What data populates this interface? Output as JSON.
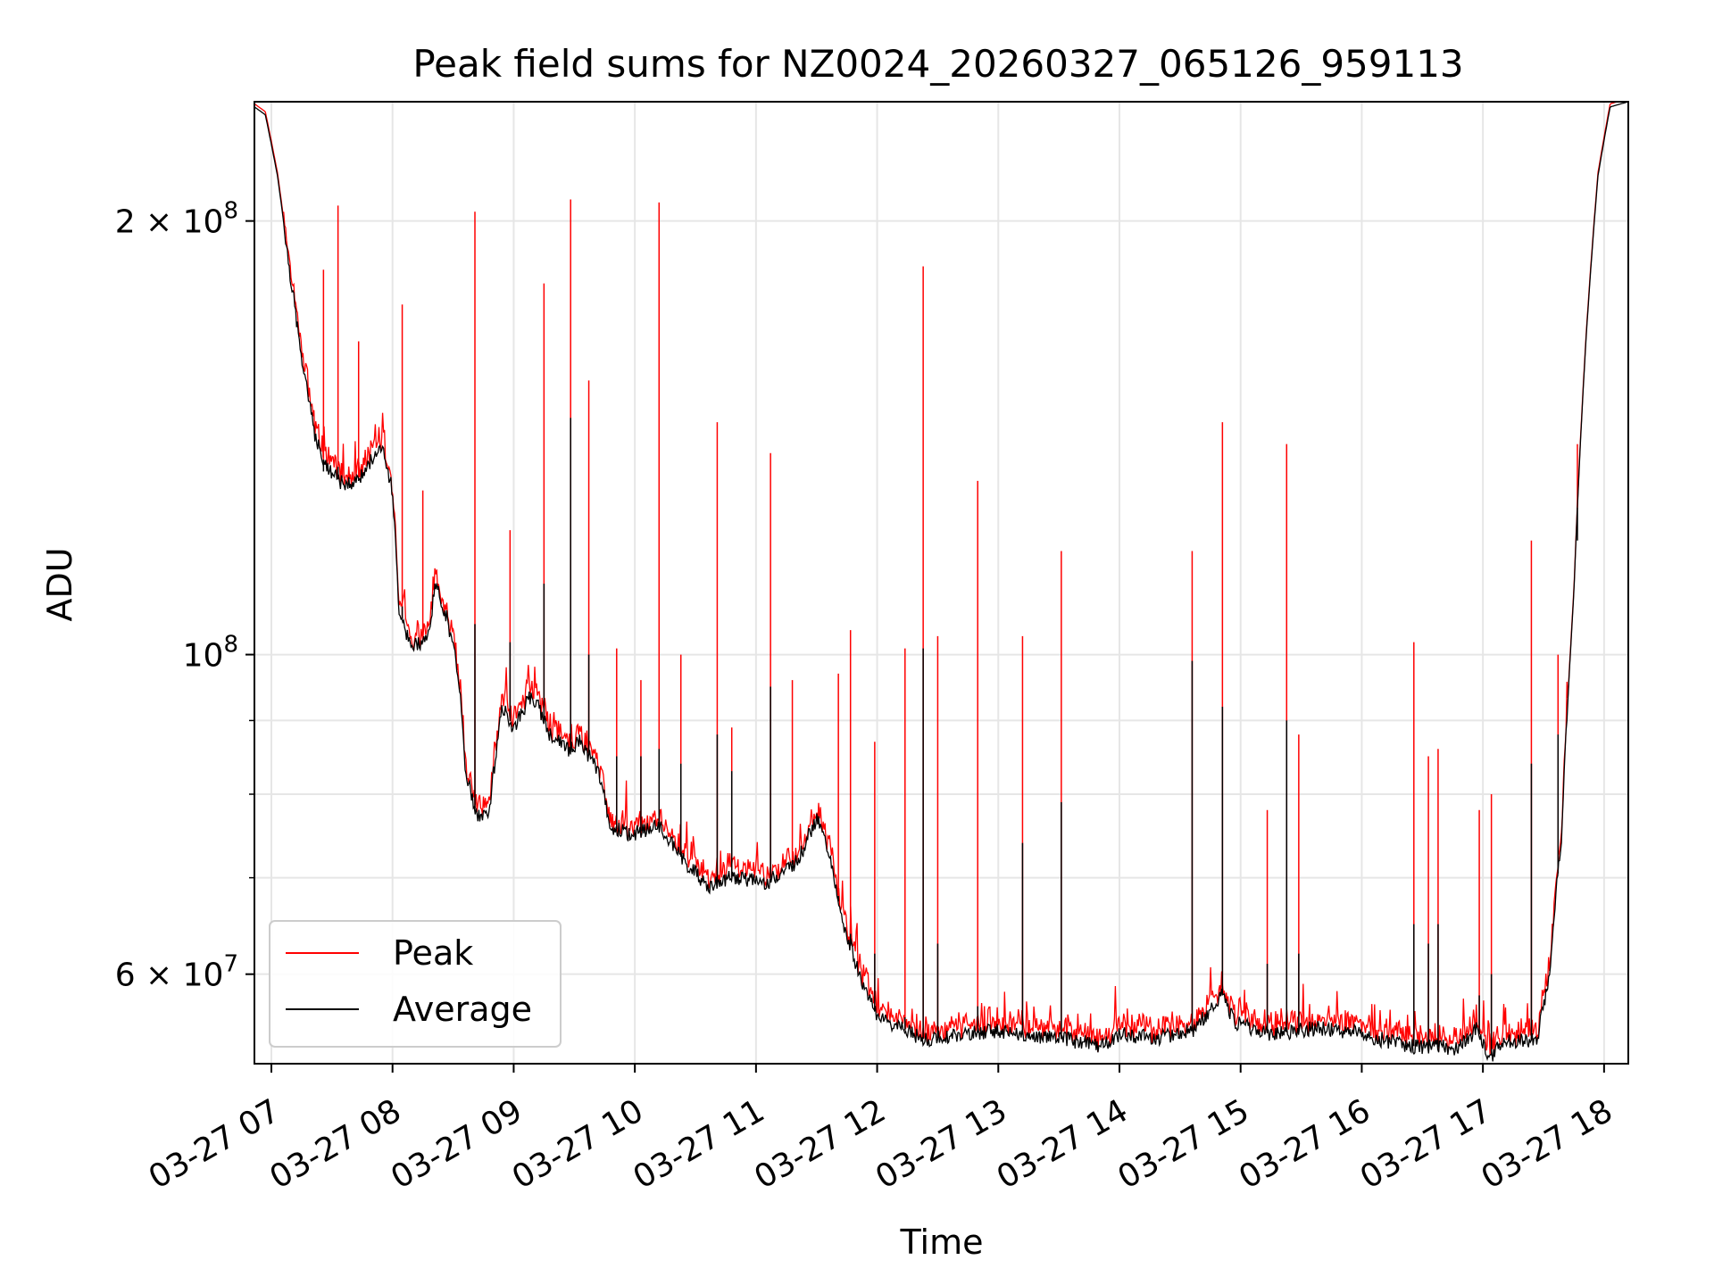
{
  "chart_data": {
    "type": "line",
    "title": "Peak field sums for NZ0024_20260327_065126_959113",
    "xlabel": "Time",
    "ylabel": "ADU",
    "yscale": "log",
    "ylim": [
      52000000,
      242000000
    ],
    "xlim_hours": [
      6.86,
      18.2
    ],
    "grid": true,
    "legend_position": "lower-left",
    "x_ticks": [
      {
        "hour": 7,
        "label": "03-27 07"
      },
      {
        "hour": 8,
        "label": "03-27 08"
      },
      {
        "hour": 9,
        "label": "03-27 09"
      },
      {
        "hour": 10,
        "label": "03-27 10"
      },
      {
        "hour": 11,
        "label": "03-27 11"
      },
      {
        "hour": 12,
        "label": "03-27 12"
      },
      {
        "hour": 13,
        "label": "03-27 13"
      },
      {
        "hour": 14,
        "label": "03-27 14"
      },
      {
        "hour": 15,
        "label": "03-27 15"
      },
      {
        "hour": 16,
        "label": "03-27 16"
      },
      {
        "hour": 17,
        "label": "03-27 17"
      },
      {
        "hour": 18,
        "label": "03-27 18"
      }
    ],
    "y_major_ticks": [
      {
        "value": 60000000,
        "mantissa": "6",
        "exponent": "7"
      },
      {
        "value": 100000000,
        "mantissa": "",
        "exponent": "8"
      },
      {
        "value": 200000000,
        "mantissa": "2",
        "exponent": "8"
      }
    ],
    "y_minor_ticks": [
      70000000,
      80000000,
      90000000
    ],
    "series": [
      {
        "name": "Peak",
        "color": "#ff0000"
      },
      {
        "name": "Average",
        "color": "#000000"
      }
    ],
    "average_baseline": [
      [
        6.86,
        240000000
      ],
      [
        6.95,
        237000000
      ],
      [
        7.05,
        215000000
      ],
      [
        7.15,
        185000000
      ],
      [
        7.25,
        160000000
      ],
      [
        7.35,
        143000000
      ],
      [
        7.45,
        135000000
      ],
      [
        7.6,
        131000000
      ],
      [
        7.75,
        133000000
      ],
      [
        7.9,
        140000000
      ],
      [
        8.0,
        130000000
      ],
      [
        8.05,
        108000000
      ],
      [
        8.15,
        101000000
      ],
      [
        8.3,
        103000000
      ],
      [
        8.35,
        112000000
      ],
      [
        8.45,
        106000000
      ],
      [
        8.55,
        96000000
      ],
      [
        8.6,
        83000000
      ],
      [
        8.7,
        77000000
      ],
      [
        8.8,
        78000000
      ],
      [
        8.9,
        92000000
      ],
      [
        9.0,
        89000000
      ],
      [
        9.15,
        94000000
      ],
      [
        9.3,
        88000000
      ],
      [
        9.45,
        86000000
      ],
      [
        9.55,
        87000000
      ],
      [
        9.7,
        83000000
      ],
      [
        9.8,
        76000000
      ],
      [
        9.95,
        75000000
      ],
      [
        10.2,
        76000000
      ],
      [
        10.4,
        72000000
      ],
      [
        10.6,
        69000000
      ],
      [
        10.8,
        70000000
      ],
      [
        11.1,
        69500000
      ],
      [
        11.35,
        72000000
      ],
      [
        11.5,
        77000000
      ],
      [
        11.6,
        73000000
      ],
      [
        11.7,
        66000000
      ],
      [
        11.85,
        60000000
      ],
      [
        12.0,
        56000000
      ],
      [
        12.2,
        55000000
      ],
      [
        12.4,
        54000000
      ],
      [
        12.7,
        54500000
      ],
      [
        13.0,
        54800000
      ],
      [
        13.3,
        54300000
      ],
      [
        13.6,
        54000000
      ],
      [
        13.85,
        53500000
      ],
      [
        14.0,
        54500000
      ],
      [
        14.3,
        54200000
      ],
      [
        14.6,
        54800000
      ],
      [
        14.7,
        56000000
      ],
      [
        14.85,
        58000000
      ],
      [
        14.95,
        55500000
      ],
      [
        15.1,
        55000000
      ],
      [
        15.25,
        54500000
      ],
      [
        15.6,
        55000000
      ],
      [
        15.9,
        54800000
      ],
      [
        16.1,
        54200000
      ],
      [
        16.4,
        53500000
      ],
      [
        16.8,
        53300000
      ],
      [
        16.95,
        55000000
      ],
      [
        17.05,
        52500000
      ],
      [
        17.2,
        54000000
      ],
      [
        17.45,
        54000000
      ],
      [
        17.55,
        60000000
      ],
      [
        17.65,
        75000000
      ],
      [
        17.75,
        110000000
      ],
      [
        17.85,
        165000000
      ],
      [
        17.95,
        215000000
      ],
      [
        18.05,
        240000000
      ],
      [
        18.2,
        242000000
      ]
    ],
    "peak_spikes": [
      {
        "hour": 7.55,
        "peak": 205000000,
        "avg": 135000000
      },
      {
        "hour": 7.43,
        "peak": 185000000,
        "avg": 134000000
      },
      {
        "hour": 7.72,
        "peak": 165000000,
        "avg": 132000000
      },
      {
        "hour": 8.08,
        "peak": 175000000,
        "avg": 108000000
      },
      {
        "hour": 8.25,
        "peak": 130000000,
        "avg": 102000000
      },
      {
        "hour": 8.68,
        "peak": 203000000,
        "avg": 105000000
      },
      {
        "hour": 8.97,
        "peak": 122000000,
        "avg": 102000000
      },
      {
        "hour": 9.25,
        "peak": 181000000,
        "avg": 112000000
      },
      {
        "hour": 9.47,
        "peak": 207000000,
        "avg": 146000000
      },
      {
        "hour": 9.62,
        "peak": 155000000,
        "avg": 100000000
      },
      {
        "hour": 9.85,
        "peak": 101000000,
        "avg": 85000000
      },
      {
        "hour": 10.05,
        "peak": 96000000,
        "avg": 85000000
      },
      {
        "hour": 10.2,
        "peak": 206000000,
        "avg": 86000000
      },
      {
        "hour": 10.38,
        "peak": 100000000,
        "avg": 84000000
      },
      {
        "hour": 10.68,
        "peak": 145000000,
        "avg": 88000000
      },
      {
        "hour": 10.8,
        "peak": 89000000,
        "avg": 83000000
      },
      {
        "hour": 11.12,
        "peak": 138000000,
        "avg": 95000000
      },
      {
        "hour": 11.3,
        "peak": 96000000,
        "avg": 72000000
      },
      {
        "hour": 11.68,
        "peak": 97000000,
        "avg": 68000000
      },
      {
        "hour": 11.78,
        "peak": 104000000,
        "avg": 64000000
      },
      {
        "hour": 11.98,
        "peak": 87000000,
        "avg": 62000000
      },
      {
        "hour": 12.23,
        "peak": 101000000,
        "avg": 56000000
      },
      {
        "hour": 12.38,
        "peak": 186000000,
        "avg": 101000000
      },
      {
        "hour": 12.5,
        "peak": 103000000,
        "avg": 63000000
      },
      {
        "hour": 12.83,
        "peak": 132000000,
        "avg": 57000000
      },
      {
        "hour": 13.2,
        "peak": 103000000,
        "avg": 74000000
      },
      {
        "hour": 13.52,
        "peak": 118000000,
        "avg": 79000000
      },
      {
        "hour": 14.6,
        "peak": 118000000,
        "avg": 99000000
      },
      {
        "hour": 14.85,
        "peak": 145000000,
        "avg": 92000000
      },
      {
        "hour": 15.22,
        "peak": 78000000,
        "avg": 61000000
      },
      {
        "hour": 15.38,
        "peak": 140000000,
        "avg": 90000000
      },
      {
        "hour": 15.48,
        "peak": 88000000,
        "avg": 62000000
      },
      {
        "hour": 16.43,
        "peak": 102000000,
        "avg": 65000000
      },
      {
        "hour": 16.55,
        "peak": 85000000,
        "avg": 63000000
      },
      {
        "hour": 16.63,
        "peak": 86000000,
        "avg": 65000000
      },
      {
        "hour": 16.97,
        "peak": 78000000,
        "avg": 58000000
      },
      {
        "hour": 17.07,
        "peak": 80000000,
        "avg": 60000000
      },
      {
        "hour": 17.4,
        "peak": 120000000,
        "avg": 84000000
      },
      {
        "hour": 17.62,
        "peak": 100000000,
        "avg": 88000000
      },
      {
        "hour": 17.78,
        "peak": 140000000,
        "avg": 120000000
      }
    ]
  }
}
